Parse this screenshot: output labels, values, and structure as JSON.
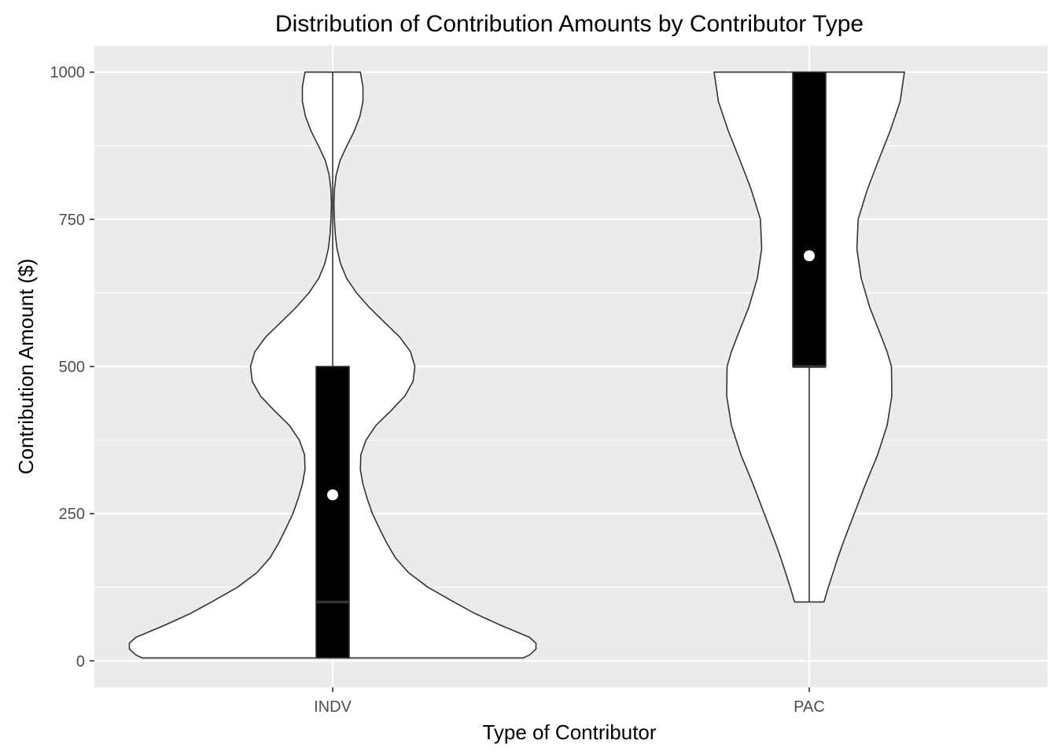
{
  "chart_data": {
    "type": "violin",
    "title": "Distribution of  Contribution Amounts by Contributor Type",
    "xlabel": "Type of Contributor",
    "ylabel": "Contribution Amount ($)",
    "categories": [
      "INDV",
      "PAC"
    ],
    "ylim": [
      -45,
      1045
    ],
    "y_ticks": [
      0,
      250,
      500,
      750,
      1000
    ],
    "y_tick_labels": [
      "0",
      "250",
      "500",
      "750",
      "1000"
    ],
    "grid": true,
    "background": "#EBEBEB",
    "violins": [
      {
        "category": "INDV",
        "min": 5,
        "max": 1000,
        "q1": 5,
        "median": 100,
        "q3": 500,
        "mean": 282,
        "whisker_low": 5,
        "whisker_high": 1000,
        "density_profile": [
          [
            5,
            0.44
          ],
          [
            10,
            0.455
          ],
          [
            20,
            0.47
          ],
          [
            30,
            0.47
          ],
          [
            40,
            0.455
          ],
          [
            60,
            0.39
          ],
          [
            80,
            0.33
          ],
          [
            100,
            0.28
          ],
          [
            125,
            0.22
          ],
          [
            150,
            0.175
          ],
          [
            175,
            0.145
          ],
          [
            200,
            0.125
          ],
          [
            225,
            0.108
          ],
          [
            250,
            0.092
          ],
          [
            275,
            0.08
          ],
          [
            300,
            0.07
          ],
          [
            325,
            0.064
          ],
          [
            350,
            0.065
          ],
          [
            375,
            0.077
          ],
          [
            400,
            0.1
          ],
          [
            425,
            0.135
          ],
          [
            450,
            0.167
          ],
          [
            475,
            0.186
          ],
          [
            500,
            0.19
          ],
          [
            525,
            0.18
          ],
          [
            550,
            0.155
          ],
          [
            575,
            0.12
          ],
          [
            600,
            0.085
          ],
          [
            625,
            0.055
          ],
          [
            650,
            0.032
          ],
          [
            675,
            0.018
          ],
          [
            700,
            0.01
          ],
          [
            725,
            0.006
          ],
          [
            750,
            0.004
          ],
          [
            775,
            0.003
          ],
          [
            800,
            0.004
          ],
          [
            825,
            0.008
          ],
          [
            850,
            0.017
          ],
          [
            875,
            0.033
          ],
          [
            900,
            0.05
          ],
          [
            925,
            0.063
          ],
          [
            950,
            0.07
          ],
          [
            975,
            0.07
          ],
          [
            1000,
            0.064
          ]
        ]
      },
      {
        "category": "PAC",
        "min": 100,
        "max": 1000,
        "q1": 500,
        "median": 500,
        "q3": 1000,
        "mean": 688,
        "whisker_low": 100,
        "whisker_high": 1000,
        "density_profile": [
          [
            100,
            0.034
          ],
          [
            125,
            0.044
          ],
          [
            150,
            0.055
          ],
          [
            175,
            0.066
          ],
          [
            200,
            0.078
          ],
          [
            250,
            0.104
          ],
          [
            300,
            0.13
          ],
          [
            350,
            0.158
          ],
          [
            400,
            0.18
          ],
          [
            450,
            0.191
          ],
          [
            500,
            0.19
          ],
          [
            525,
            0.18
          ],
          [
            550,
            0.167
          ],
          [
            600,
            0.14
          ],
          [
            650,
            0.12
          ],
          [
            700,
            0.11
          ],
          [
            750,
            0.113
          ],
          [
            800,
            0.134
          ],
          [
            850,
            0.16
          ],
          [
            900,
            0.187
          ],
          [
            950,
            0.21
          ],
          [
            1000,
            0.22
          ]
        ]
      }
    ]
  }
}
